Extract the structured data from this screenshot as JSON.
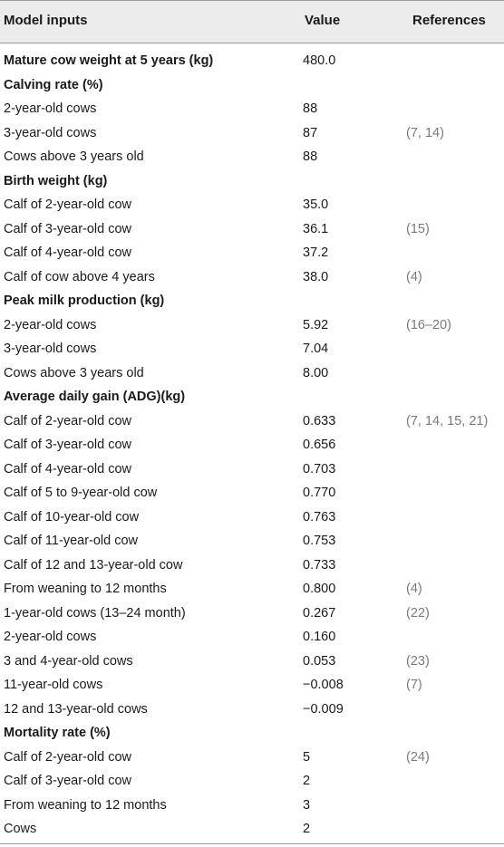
{
  "header": {
    "col_inputs": "Model inputs",
    "col_value": "Value",
    "col_refs": "References"
  },
  "rows": [
    {
      "label": "Mature cow weight at 5 years (kg)",
      "value": "480.0",
      "ref": "",
      "section": true
    },
    {
      "label": "Calving rate (%)",
      "value": "",
      "ref": "",
      "section": true
    },
    {
      "label": "2-year-old cows",
      "value": "88",
      "ref": "",
      "section": false
    },
    {
      "label": "3-year-old cows",
      "value": "87",
      "ref": "(7, 14)",
      "section": false
    },
    {
      "label": "Cows above 3 years old",
      "value": "88",
      "ref": "",
      "section": false
    },
    {
      "label": "Birth weight (kg)",
      "value": "",
      "ref": "",
      "section": true
    },
    {
      "label": "Calf of 2-year-old cow",
      "value": "35.0",
      "ref": "",
      "section": false
    },
    {
      "label": "Calf of 3-year-old cow",
      "value": "36.1",
      "ref": "(15)",
      "section": false
    },
    {
      "label": "Calf of 4-year-old cow",
      "value": "37.2",
      "ref": "",
      "section": false
    },
    {
      "label": "Calf of cow above 4 years",
      "value": "38.0",
      "ref": "(4)",
      "section": false
    },
    {
      "label": "Peak milk production (kg)",
      "value": "",
      "ref": "",
      "section": true
    },
    {
      "label": "2-year-old cows",
      "value": "5.92",
      "ref": "(16–20)",
      "section": false
    },
    {
      "label": "3-year-old cows",
      "value": "7.04",
      "ref": "",
      "section": false
    },
    {
      "label": "Cows above 3 years old",
      "value": "8.00",
      "ref": "",
      "section": false
    },
    {
      "label": "Average daily gain (ADG)(kg)",
      "value": "",
      "ref": "",
      "section": true
    },
    {
      "label": "Calf of 2-year-old cow",
      "value": "0.633",
      "ref": "(7, 14, 15, 21)",
      "section": false
    },
    {
      "label": "Calf of 3-year-old cow",
      "value": "0.656",
      "ref": "",
      "section": false
    },
    {
      "label": "Calf of 4-year-old cow",
      "value": "0.703",
      "ref": "",
      "section": false
    },
    {
      "label": "Calf of 5 to 9-year-old cow",
      "value": "0.770",
      "ref": "",
      "section": false
    },
    {
      "label": "Calf of 10-year-old cow",
      "value": "0.763",
      "ref": "",
      "section": false
    },
    {
      "label": "Calf of 11-year-old cow",
      "value": "0.753",
      "ref": "",
      "section": false
    },
    {
      "label": "Calf of 12 and 13-year-old cow",
      "value": "0.733",
      "ref": "",
      "section": false
    },
    {
      "label": "From weaning to 12 months",
      "value": "0.800",
      "ref": "(4)",
      "section": false
    },
    {
      "label": "1-year-old cows (13–24 month)",
      "value": "0.267",
      "ref": "(22)",
      "section": false
    },
    {
      "label": "2-year-old cows",
      "value": "0.160",
      "ref": "",
      "section": false
    },
    {
      "label": "3 and 4-year-old cows",
      "value": "0.053",
      "ref": "(23)",
      "section": false
    },
    {
      "label": "11-year-old cows",
      "value": "−0.008",
      "ref": "(7)",
      "section": false
    },
    {
      "label": "12 and 13-year-old cows",
      "value": "−0.009",
      "ref": "",
      "section": false
    },
    {
      "label": "Mortality rate (%)",
      "value": "",
      "ref": "",
      "section": true
    },
    {
      "label": "Calf of 2-year-old cow",
      "value": "5",
      "ref": "(24)",
      "section": false
    },
    {
      "label": "Calf of 3-year-old cow",
      "value": "2",
      "ref": "",
      "section": false
    },
    {
      "label": "From weaning to 12 months",
      "value": "3",
      "ref": "",
      "section": false
    },
    {
      "label": "Cows",
      "value": "2",
      "ref": "",
      "section": false
    }
  ]
}
